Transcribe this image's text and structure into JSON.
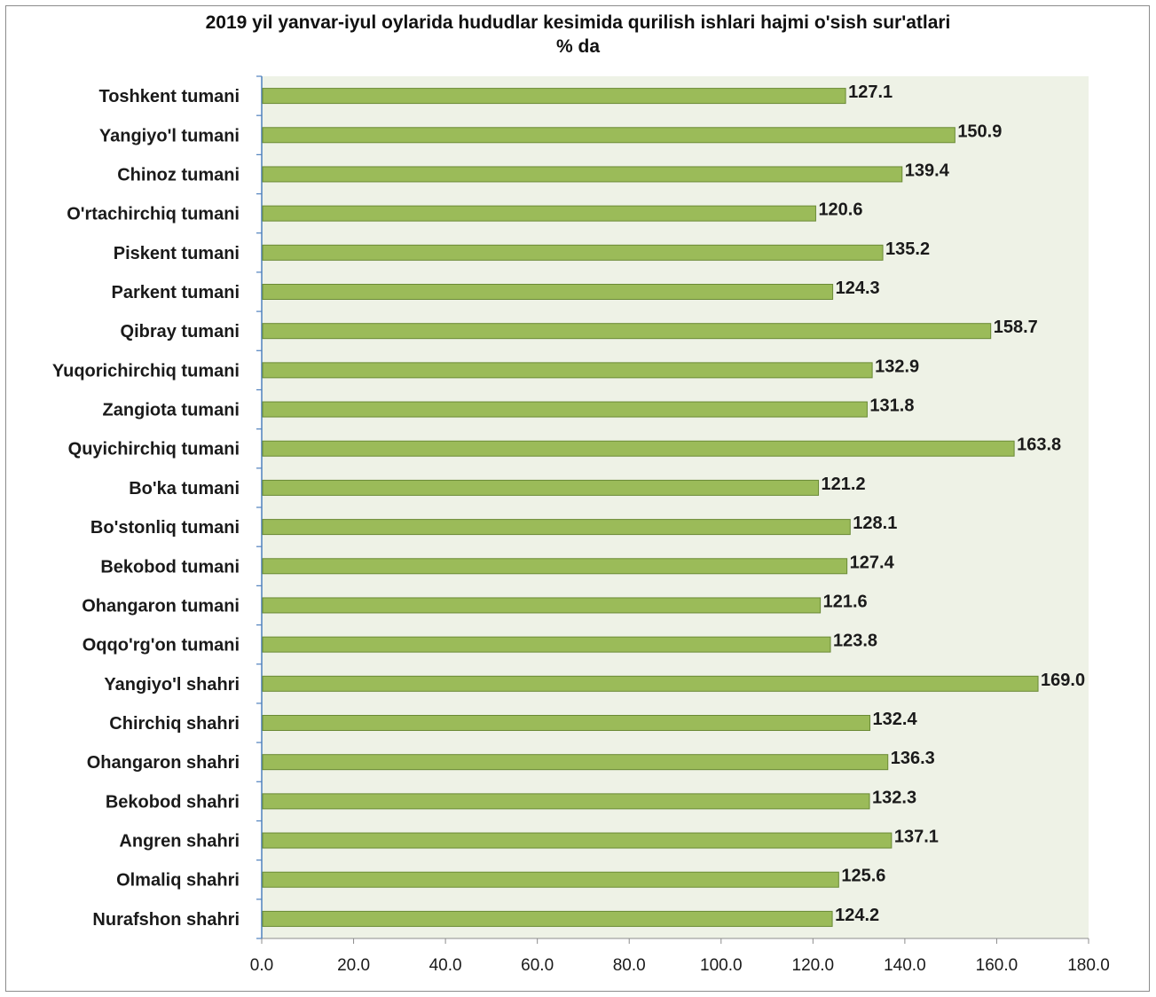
{
  "chart_data": {
    "type": "bar",
    "orientation": "horizontal",
    "title": "2019 yil yanvar-iyul oylarida hududlar kesimida qurilish ishlari hajmi o'sish sur'atlari",
    "subtitle": "% da",
    "xlabel": "",
    "ylabel": "",
    "xlim": [
      0,
      180
    ],
    "ticks": [
      "0.0",
      "20.0",
      "40.0",
      "60.0",
      "80.0",
      "100.0",
      "120.0",
      "140.0",
      "160.0",
      "180.0"
    ],
    "grid": false,
    "legend": "none",
    "categories": [
      "Toshkent tumani",
      "Yangiyo'l tumani",
      "Chinoz tumani",
      "O'rtachirchiq tumani",
      "Piskent tumani",
      "Parkent tumani",
      "Qibray tumani",
      "Yuqorichirchiq tumani",
      "Zangiota tumani",
      "Quyichirchiq tumani",
      "Bo'ka tumani",
      "Bo'stonliq tumani",
      "Bekobod tumani",
      "Ohangaron tumani",
      "Oqqo'rg'on tumani",
      "Yangiyo'l shahri",
      "Chirchiq shahri",
      "Ohangaron shahri",
      "Bekobod shahri",
      "Angren shahri",
      "Olmaliq shahri",
      "Nurafshon shahri"
    ],
    "values": [
      127.1,
      150.9,
      139.4,
      120.6,
      135.2,
      124.3,
      158.7,
      132.9,
      131.8,
      163.8,
      121.2,
      128.1,
      127.4,
      121.6,
      123.8,
      169.0,
      132.4,
      136.3,
      132.3,
      137.1,
      125.6,
      124.2
    ],
    "value_labels": [
      "127.1",
      "150.9",
      "139.4",
      "120.6",
      "135.2",
      "124.3",
      "158.7",
      "132.9",
      "131.8",
      "163.8",
      "121.2",
      "128.1",
      "127.4",
      "121.6",
      "123.8",
      "169.0",
      "132.4",
      "136.3",
      "132.3",
      "137.1",
      "125.6",
      "124.2"
    ],
    "colors": {
      "bar_fill": "#9bbb59",
      "bar_stroke": "#6a8a35",
      "plot_bg": "#eef2e6",
      "axis": "#4f81bd"
    }
  }
}
